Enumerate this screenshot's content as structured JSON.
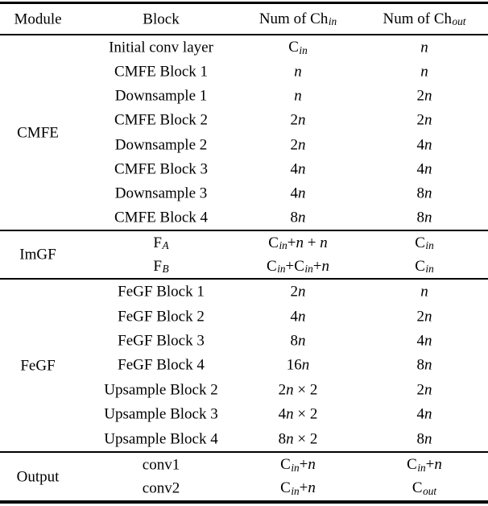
{
  "table": {
    "headers": {
      "module": "Module",
      "block": "Block",
      "ch_in": [
        [
          "r",
          "Num of Ch"
        ],
        [
          "s",
          "in"
        ]
      ],
      "ch_out": [
        [
          "r",
          "Num of Ch"
        ],
        [
          "s",
          "out"
        ]
      ]
    },
    "sections": [
      {
        "module": "CMFE",
        "rows": [
          {
            "block": "Initial conv layer",
            "ch_in": [
              [
                "r",
                "C"
              ],
              [
                "s",
                "in"
              ]
            ],
            "ch_out": [
              [
                "i",
                "n"
              ]
            ]
          },
          {
            "block": "CMFE Block 1",
            "ch_in": [
              [
                "i",
                "n"
              ]
            ],
            "ch_out": [
              [
                "i",
                "n"
              ]
            ]
          },
          {
            "block": "Downsample 1",
            "ch_in": [
              [
                "i",
                "n"
              ]
            ],
            "ch_out": [
              [
                "r",
                "2"
              ],
              [
                "i",
                "n"
              ]
            ]
          },
          {
            "block": "CMFE Block 2",
            "ch_in": [
              [
                "r",
                "2"
              ],
              [
                "i",
                "n"
              ]
            ],
            "ch_out": [
              [
                "r",
                "2"
              ],
              [
                "i",
                "n"
              ]
            ]
          },
          {
            "block": "Downsample 2",
            "ch_in": [
              [
                "r",
                "2"
              ],
              [
                "i",
                "n"
              ]
            ],
            "ch_out": [
              [
                "r",
                "4"
              ],
              [
                "i",
                "n"
              ]
            ]
          },
          {
            "block": "CMFE Block 3",
            "ch_in": [
              [
                "r",
                "4"
              ],
              [
                "i",
                "n"
              ]
            ],
            "ch_out": [
              [
                "r",
                "4"
              ],
              [
                "i",
                "n"
              ]
            ]
          },
          {
            "block": "Downsample 3",
            "ch_in": [
              [
                "r",
                "4"
              ],
              [
                "i",
                "n"
              ]
            ],
            "ch_out": [
              [
                "r",
                "8"
              ],
              [
                "i",
                "n"
              ]
            ]
          },
          {
            "block": "CMFE Block 4",
            "ch_in": [
              [
                "r",
                "8"
              ],
              [
                "i",
                "n"
              ]
            ],
            "ch_out": [
              [
                "r",
                "8"
              ],
              [
                "i",
                "n"
              ]
            ]
          }
        ]
      },
      {
        "module": "ImGF",
        "rows": [
          {
            "block": [
              [
                "r",
                "F"
              ],
              [
                "s",
                "A"
              ]
            ],
            "ch_in": [
              [
                "r",
                "C"
              ],
              [
                "s",
                "in"
              ],
              [
                "r",
                "+"
              ],
              [
                "i",
                "n"
              ],
              [
                "r",
                " + "
              ],
              [
                "i",
                "n"
              ]
            ],
            "ch_out": [
              [
                "r",
                "C"
              ],
              [
                "s",
                "in"
              ]
            ]
          },
          {
            "block": [
              [
                "r",
                "F"
              ],
              [
                "s",
                "B"
              ]
            ],
            "ch_in": [
              [
                "r",
                "C"
              ],
              [
                "s",
                "in"
              ],
              [
                "r",
                "+C"
              ],
              [
                "s",
                "in"
              ],
              [
                "r",
                "+"
              ],
              [
                "i",
                "n"
              ]
            ],
            "ch_out": [
              [
                "r",
                "C"
              ],
              [
                "s",
                "in"
              ]
            ]
          }
        ]
      },
      {
        "module": "FeGF",
        "rows": [
          {
            "block": "FeGF Block 1",
            "ch_in": [
              [
                "r",
                "2"
              ],
              [
                "i",
                "n"
              ]
            ],
            "ch_out": [
              [
                "i",
                "n"
              ]
            ]
          },
          {
            "block": "FeGF Block 2",
            "ch_in": [
              [
                "r",
                "4"
              ],
              [
                "i",
                "n"
              ]
            ],
            "ch_out": [
              [
                "r",
                "2"
              ],
              [
                "i",
                "n"
              ]
            ]
          },
          {
            "block": "FeGF Block 3",
            "ch_in": [
              [
                "r",
                "8"
              ],
              [
                "i",
                "n"
              ]
            ],
            "ch_out": [
              [
                "r",
                "4"
              ],
              [
                "i",
                "n"
              ]
            ]
          },
          {
            "block": "FeGF Block 4",
            "ch_in": [
              [
                "r",
                "16"
              ],
              [
                "i",
                "n"
              ]
            ],
            "ch_out": [
              [
                "r",
                "8"
              ],
              [
                "i",
                "n"
              ]
            ]
          },
          {
            "block": "Upsample Block 2",
            "ch_in": [
              [
                "r",
                "2"
              ],
              [
                "i",
                "n"
              ],
              [
                "r",
                " × 2"
              ]
            ],
            "ch_out": [
              [
                "r",
                "2"
              ],
              [
                "i",
                "n"
              ]
            ]
          },
          {
            "block": "Upsample Block 3",
            "ch_in": [
              [
                "r",
                "4"
              ],
              [
                "i",
                "n"
              ],
              [
                "r",
                " × 2"
              ]
            ],
            "ch_out": [
              [
                "r",
                "4"
              ],
              [
                "i",
                "n"
              ]
            ]
          },
          {
            "block": "Upsample Block 4",
            "ch_in": [
              [
                "r",
                "8"
              ],
              [
                "i",
                "n"
              ],
              [
                "r",
                " × 2"
              ]
            ],
            "ch_out": [
              [
                "r",
                "8"
              ],
              [
                "i",
                "n"
              ]
            ]
          }
        ]
      },
      {
        "module": "Output",
        "rows": [
          {
            "block": "conv1",
            "ch_in": [
              [
                "r",
                "C"
              ],
              [
                "s",
                "in"
              ],
              [
                "r",
                "+"
              ],
              [
                "i",
                "n"
              ]
            ],
            "ch_out": [
              [
                "r",
                "C"
              ],
              [
                "s",
                "in"
              ],
              [
                "r",
                "+"
              ],
              [
                "i",
                "n"
              ]
            ]
          },
          {
            "block": "conv2",
            "ch_in": [
              [
                "r",
                "C"
              ],
              [
                "s",
                "in"
              ],
              [
                "r",
                "+"
              ],
              [
                "i",
                "n"
              ]
            ],
            "ch_out": [
              [
                "r",
                "C"
              ],
              [
                "s",
                "out"
              ]
            ]
          }
        ]
      }
    ],
    "rule_color": "#000000",
    "text_color": "#000000",
    "background_color": "#ffffff"
  }
}
